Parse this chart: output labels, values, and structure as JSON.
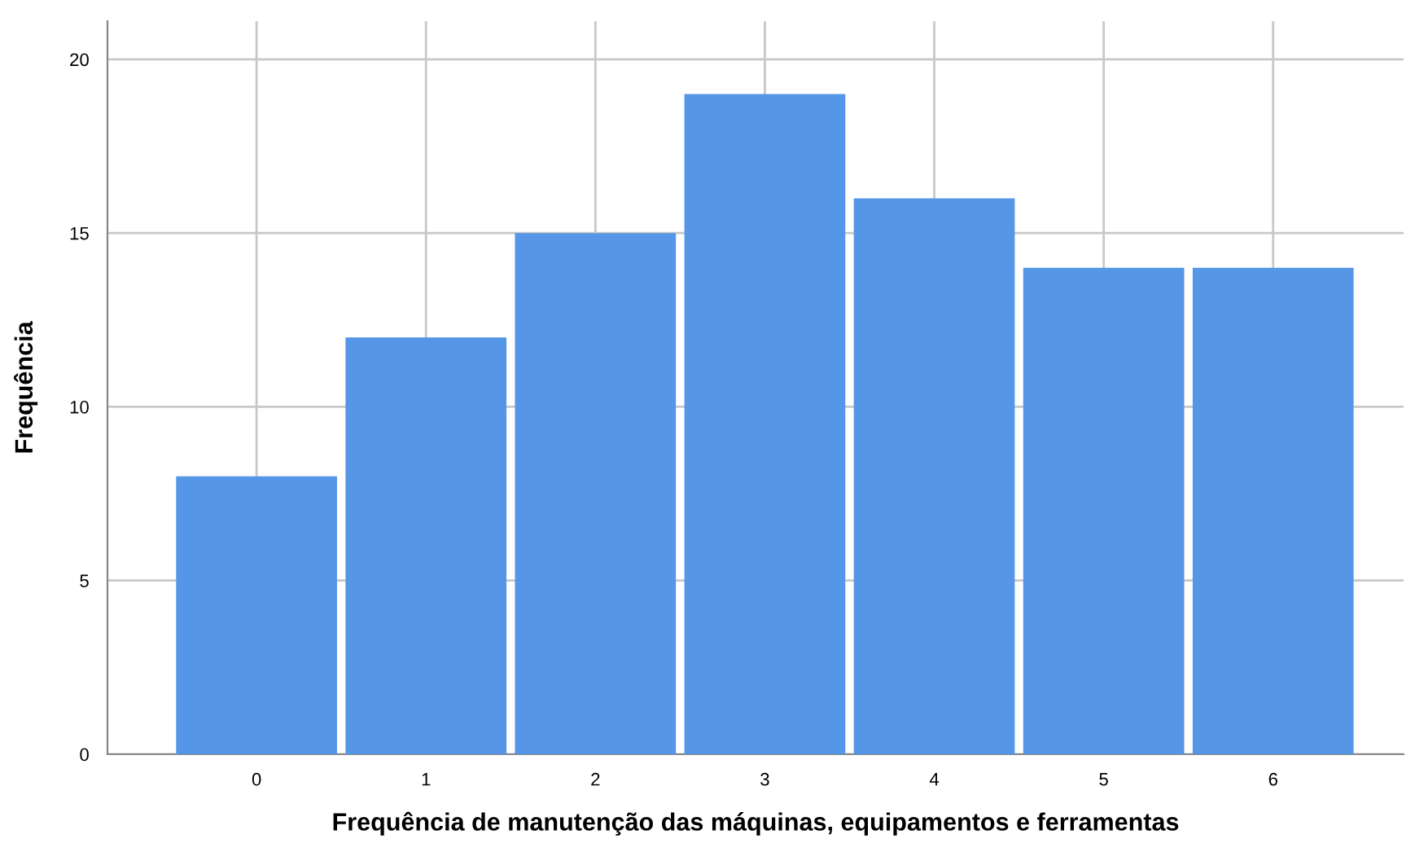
{
  "chart_data": {
    "type": "bar",
    "xlabel": "Frequência de manutenção das máquinas, equipamentos e ferramentas",
    "ylabel": "Frequência",
    "categories": [
      "0",
      "1",
      "2",
      "3",
      "4",
      "5",
      "6"
    ],
    "values": [
      8,
      12,
      15,
      19,
      16,
      14,
      14
    ],
    "color": "#5596e6",
    "ylim": [
      0,
      21.1
    ],
    "yticks": [
      0,
      5,
      10,
      15,
      20
    ],
    "grid": true
  }
}
